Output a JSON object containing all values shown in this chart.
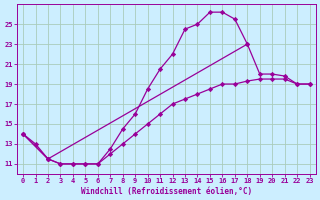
{
  "xlabel": "Windchill (Refroidissement éolien,°C)",
  "bg_color": "#cceeff",
  "grid_color": "#aaccbb",
  "line_color": "#990099",
  "xlim": [
    -0.5,
    23.5
  ],
  "ylim": [
    10.0,
    27.0
  ],
  "yticks": [
    11,
    13,
    15,
    17,
    19,
    21,
    23,
    25
  ],
  "xticks": [
    0,
    1,
    2,
    3,
    4,
    5,
    6,
    7,
    8,
    9,
    10,
    11,
    12,
    13,
    14,
    15,
    16,
    17,
    18,
    19,
    20,
    21,
    22,
    23
  ],
  "curve1_x": [
    0,
    1,
    2,
    3,
    4,
    5,
    6,
    7,
    8,
    9,
    10,
    11,
    12,
    13,
    14,
    15,
    16,
    17,
    18
  ],
  "curve1_y": [
    14.0,
    13.0,
    11.5,
    11.0,
    11.0,
    11.0,
    11.0,
    12.5,
    14.5,
    16.0,
    18.5,
    20.5,
    22.0,
    24.5,
    25.0,
    26.2,
    26.2,
    25.5,
    23.0
  ],
  "curve2_x": [
    0,
    2,
    3,
    4,
    5,
    6,
    7,
    8,
    9,
    10,
    11,
    12,
    13,
    14,
    15,
    16,
    17,
    18,
    19,
    20,
    21,
    22,
    23
  ],
  "curve2_y": [
    14.0,
    11.5,
    11.0,
    11.0,
    11.0,
    11.0,
    12.0,
    13.0,
    14.0,
    15.0,
    16.0,
    17.0,
    17.5,
    18.0,
    18.5,
    19.0,
    19.0,
    19.3,
    19.5,
    19.5,
    19.5,
    19.0,
    19.0
  ],
  "curve3_x": [
    0,
    2,
    18,
    19,
    20,
    21,
    22,
    23
  ],
  "curve3_y": [
    14.0,
    11.5,
    23.0,
    20.0,
    20.0,
    19.8,
    19.0,
    19.0
  ]
}
